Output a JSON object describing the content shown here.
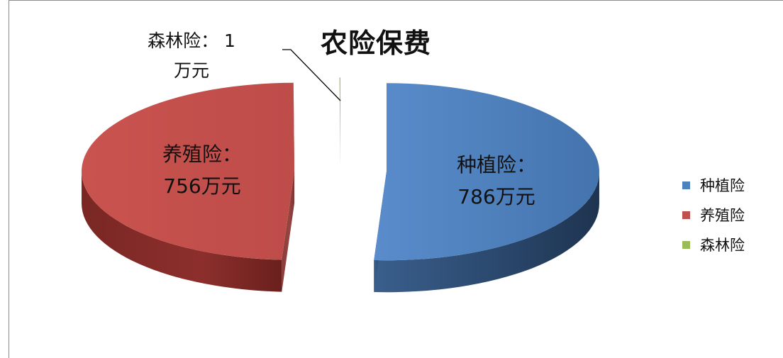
{
  "chart_data": {
    "type": "pie",
    "title": "农险保费",
    "slices": [
      {
        "name": "种植险",
        "value": 786,
        "color": "#4f81bd",
        "label_line1": "种植险：",
        "label_line2": "786万元"
      },
      {
        "name": "养殖险",
        "value": 756,
        "color": "#c0504d",
        "label_line1": "养殖险：",
        "label_line2": "756万元"
      },
      {
        "name": "森林险",
        "value": 1,
        "color": "#9bbb59",
        "label_line1": "森林险： 1",
        "label_line2": "万元"
      }
    ],
    "legend": {
      "position": "right",
      "items": [
        {
          "name": "种植险",
          "color": "#4f81bd"
        },
        {
          "name": "养殖险",
          "color": "#c0504d"
        },
        {
          "name": "森林险",
          "color": "#9bbb59"
        }
      ]
    }
  }
}
